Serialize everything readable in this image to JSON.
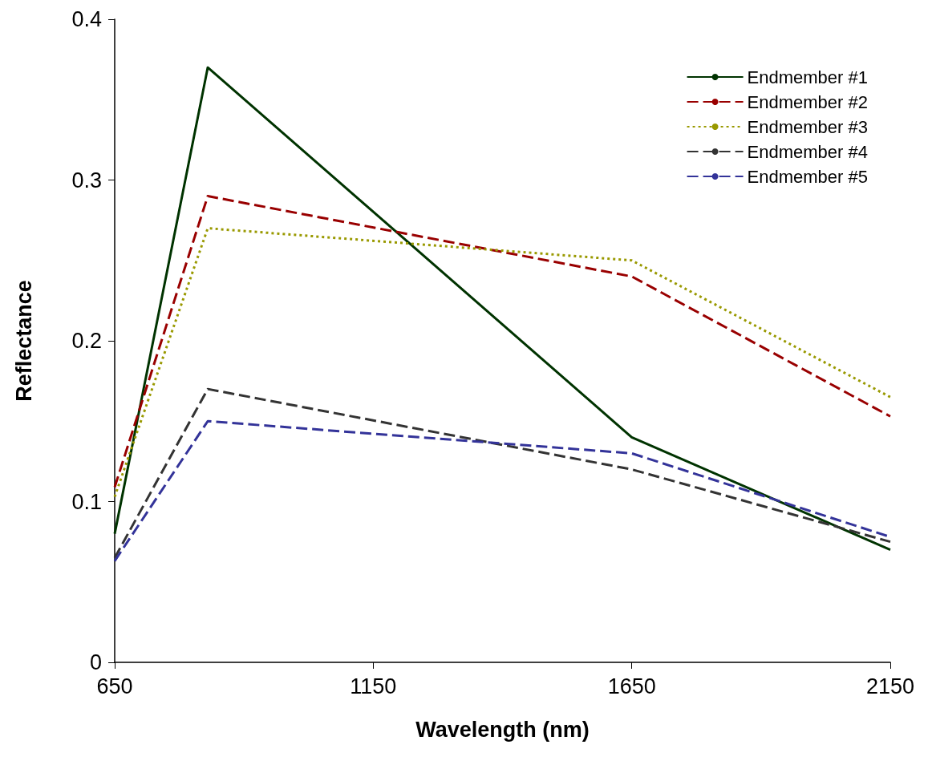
{
  "chart_data": {
    "type": "line",
    "xlabel": "Wavelength (nm)",
    "ylabel": "Reflectance",
    "x": [
      650,
      830,
      1650,
      2150
    ],
    "series": [
      {
        "name": "Endmember #1",
        "color": "#003300",
        "values": [
          0.08,
          0.37,
          0.14,
          0.07
        ],
        "line_style": "solid"
      },
      {
        "name": "Endmember #2",
        "color": "#990000",
        "values": [
          0.109,
          0.29,
          0.24,
          0.153
        ],
        "line_style": "dashed"
      },
      {
        "name": "Endmember #3",
        "color": "#999900",
        "values": [
          0.103,
          0.27,
          0.25,
          0.165
        ],
        "line_style": "dotted"
      },
      {
        "name": "Endmember #4",
        "color": "#333333",
        "values": [
          0.065,
          0.17,
          0.12,
          0.075
        ],
        "line_style": "dashed"
      },
      {
        "name": "Endmember #5",
        "color": "#333399",
        "values": [
          0.063,
          0.15,
          0.13,
          0.078
        ],
        "line_style": "dashed"
      }
    ],
    "xlim": [
      650,
      2150
    ],
    "xticks": [
      650,
      1150,
      1650,
      2150
    ],
    "ylim": [
      0,
      0.4
    ],
    "yticks": [
      0,
      0.1,
      0.2,
      0.3,
      0.4
    ],
    "grid": false,
    "legend": "top right",
    "marker": "none"
  }
}
